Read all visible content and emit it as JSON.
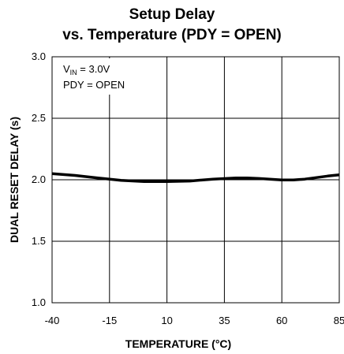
{
  "chart_data": {
    "type": "line",
    "title_line1": "Setup Delay",
    "title_line2": "vs. Temperature (PDY = OPEN)",
    "xlabel": "TEMPERATURE (°C)",
    "ylabel": "DUAL RESET DELAY (s)",
    "xlim": [
      -40,
      85
    ],
    "ylim": [
      1.0,
      3.0
    ],
    "x_ticks": [
      -40,
      -15,
      10,
      35,
      60,
      85
    ],
    "y_ticks": [
      1.0,
      1.5,
      2.0,
      2.5,
      3.0
    ],
    "x_tick_labels": [
      "-40",
      "-15",
      "10",
      "35",
      "60",
      "85"
    ],
    "y_tick_labels": [
      "1.0",
      "1.5",
      "2.0",
      "2.5",
      "3.0"
    ],
    "grid": true,
    "annotation": {
      "vin_prefix": "V",
      "vin_subscript": "IN",
      "vin_value": " = 3.0V",
      "pdy": "PDY = OPEN"
    },
    "series": [
      {
        "x": [
          -40,
          -30,
          -20,
          -10,
          0,
          10,
          20,
          30,
          40,
          45,
          50,
          60,
          65,
          70,
          80,
          85
        ],
        "y": [
          2.05,
          2.035,
          2.015,
          1.995,
          1.985,
          1.985,
          1.99,
          2.005,
          2.015,
          2.015,
          2.01,
          1.998,
          1.998,
          2.005,
          2.03,
          2.04
        ]
      }
    ]
  }
}
